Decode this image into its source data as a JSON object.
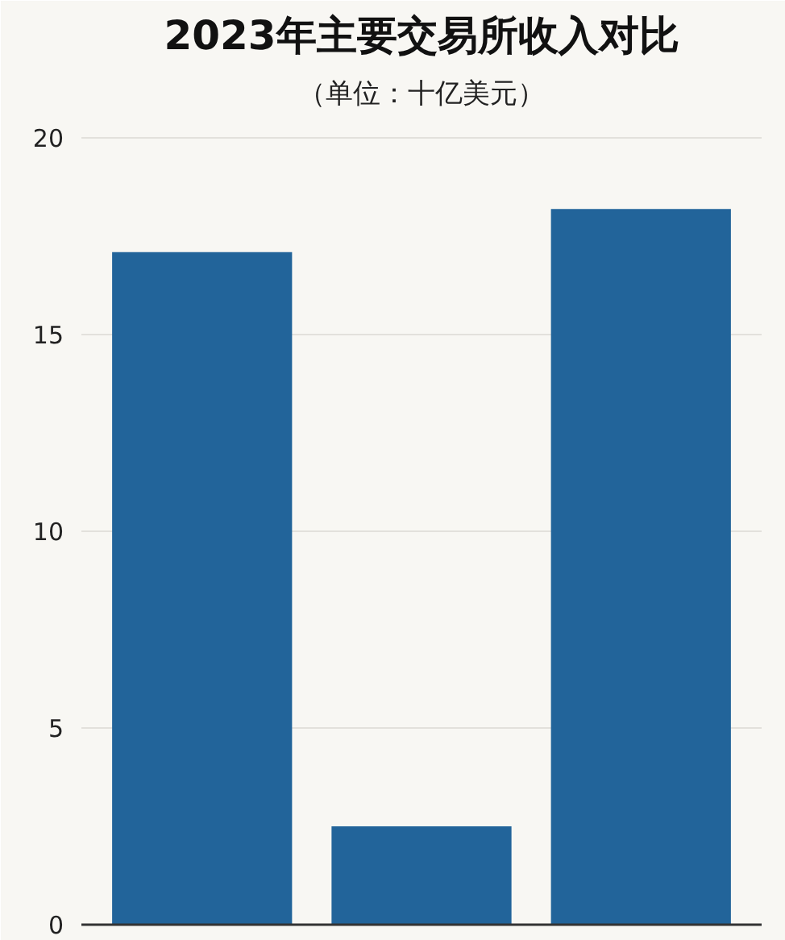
{
  "chart_data": {
    "type": "bar",
    "title": "2023年主要交易所收入对比",
    "subtitle": "（单位：十亿美元）",
    "categories": [
      null,
      null,
      null
    ],
    "values": [
      17.1,
      2.5,
      18.2
    ],
    "color": "#22649a",
    "ylim": [
      0,
      20.5
    ],
    "yticks": [
      0,
      5,
      10,
      15,
      20
    ],
    "grid": "y"
  }
}
